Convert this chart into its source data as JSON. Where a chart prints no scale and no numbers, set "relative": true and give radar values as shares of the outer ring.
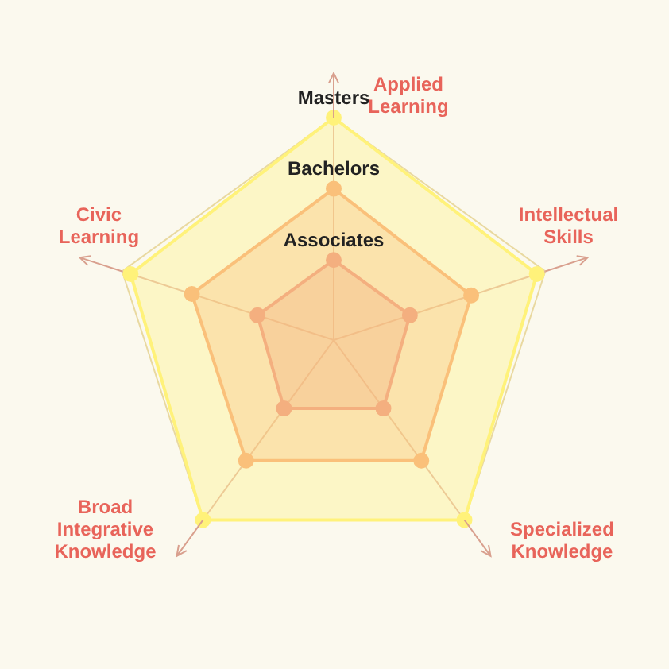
{
  "chart_data": {
    "type": "radar",
    "relative": true,
    "legend": false,
    "marker": "circle",
    "categories": [
      "Applied Learning",
      "Intellectual Skills",
      "Specialized Knowledge",
      "Broad Integrative Knowledge",
      "Civic Learning"
    ],
    "series": [
      {
        "name": "Masters",
        "color": "#fff27a",
        "values": [
          1,
          0.96,
          1,
          1,
          0.96
        ]
      },
      {
        "name": "Bachelors",
        "color": "#f7a77a",
        "values": [
          0.68,
          0.65,
          0.67,
          0.67,
          0.67
        ]
      },
      {
        "name": "Associates",
        "color": "#ea7f86",
        "values": [
          0.36,
          0.36,
          0.38,
          0.38,
          0.36
        ]
      }
    ]
  }
}
